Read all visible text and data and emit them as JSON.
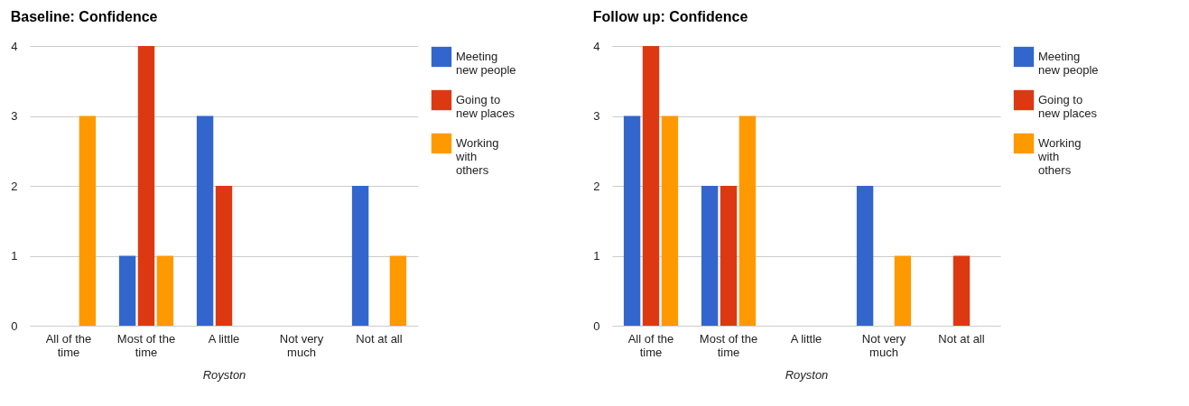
{
  "chart_data": [
    {
      "type": "bar",
      "title": "Baseline: Confidence",
      "xlabel": "Royston",
      "categories": [
        "All of the time",
        "Most of the time",
        "A little",
        "Not very much",
        "Not at all"
      ],
      "series": [
        {
          "name": "Meeting new people",
          "color": "#3366cc",
          "values": [
            0,
            1,
            3,
            0,
            2
          ]
        },
        {
          "name": "Going to new places",
          "color": "#dc3912",
          "values": [
            0,
            4,
            2,
            0,
            0
          ]
        },
        {
          "name": "Working with others",
          "color": "#ff9900",
          "values": [
            3,
            1,
            0,
            0,
            1
          ]
        }
      ],
      "ylim": [
        0,
        4
      ],
      "yticks": [
        0,
        1,
        2,
        3,
        4
      ],
      "grid": "y",
      "legend": "top right"
    },
    {
      "type": "bar",
      "title": "Follow up: Confidence",
      "xlabel": "Royston",
      "categories": [
        "All of the time",
        "Most of the time",
        "A little",
        "Not very much",
        "Not at all"
      ],
      "series": [
        {
          "name": "Meeting new people",
          "color": "#3366cc",
          "values": [
            3,
            2,
            0,
            2,
            0
          ]
        },
        {
          "name": "Going to new places",
          "color": "#dc3912",
          "values": [
            4,
            2,
            0,
            0,
            1
          ]
        },
        {
          "name": "Working with others",
          "color": "#ff9900",
          "values": [
            3,
            3,
            0,
            1,
            0
          ]
        }
      ],
      "ylim": [
        0,
        4
      ],
      "yticks": [
        0,
        1,
        2,
        3,
        4
      ],
      "grid": "y",
      "legend": "top right"
    }
  ]
}
